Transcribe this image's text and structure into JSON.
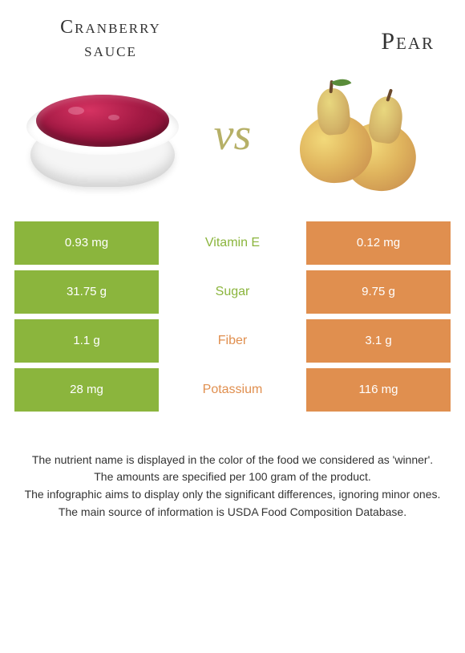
{
  "header": {
    "left_title_line1": "Cranberry",
    "left_title_line2": "sauce",
    "right_title": "Pear",
    "vs_label": "vs"
  },
  "colors": {
    "green": "#8bb53d",
    "orange": "#e08f4f",
    "background": "#ffffff"
  },
  "rows": [
    {
      "nutrient": "Vitamin E",
      "left": "0.93 mg",
      "right": "0.12 mg",
      "winner": "left"
    },
    {
      "nutrient": "Sugar",
      "left": "31.75 g",
      "right": "9.75 g",
      "winner": "left"
    },
    {
      "nutrient": "Fiber",
      "left": "1.1 g",
      "right": "3.1 g",
      "winner": "right"
    },
    {
      "nutrient": "Potassium",
      "left": "28 mg",
      "right": "116 mg",
      "winner": "right"
    }
  ],
  "footnotes": [
    "The nutrient name is displayed in the color of the food we considered as 'winner'.",
    "The amounts are specified per 100 gram of the product.",
    "The infographic aims to display only the significant differences, ignoring minor ones.",
    "The main source of information is USDA Food Composition Database."
  ]
}
